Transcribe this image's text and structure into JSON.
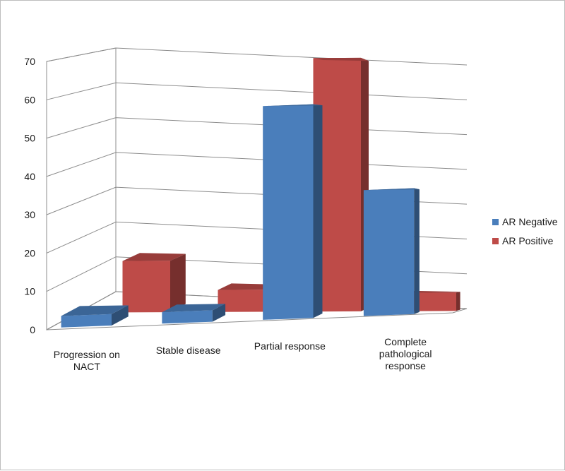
{
  "chart_data": {
    "type": "bar",
    "style": "3d-clustered-column",
    "categories": [
      [
        "Progression on",
        "NACT"
      ],
      [
        "Stable disease"
      ],
      [
        "Partial response"
      ],
      [
        "Complete",
        "pathological",
        "response"
      ]
    ],
    "series": [
      {
        "name": "AR Negative",
        "color": "#4a7ebb",
        "values": [
          3,
          3,
          56,
          33
        ]
      },
      {
        "name": "AR Positive",
        "color": "#be4b48",
        "values": [
          14,
          6,
          69,
          5
        ]
      }
    ],
    "ylim": [
      0,
      70
    ],
    "yticks": [
      0,
      10,
      20,
      30,
      40,
      50,
      60,
      70
    ],
    "grid": true,
    "legend_position": "right"
  }
}
